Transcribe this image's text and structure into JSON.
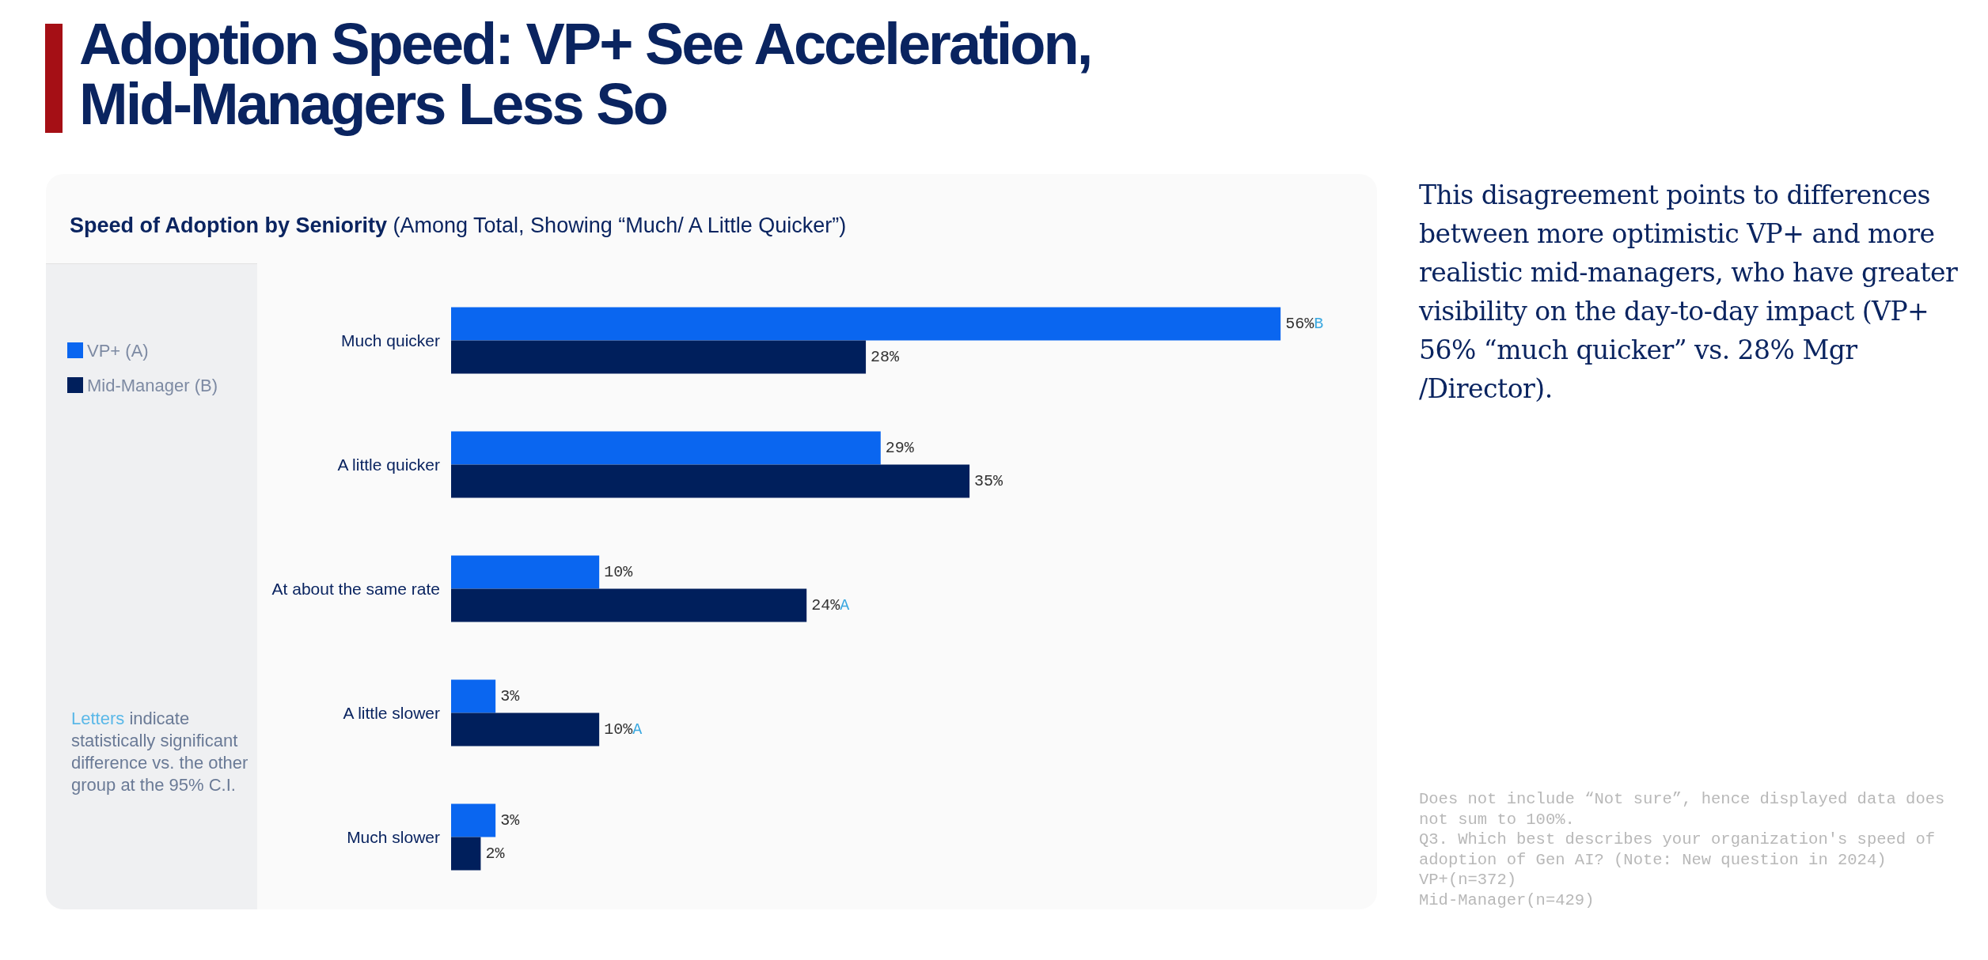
{
  "chart_data": {
    "type": "bar",
    "orientation": "horizontal",
    "title": "Adoption Speed: VP+ See Acceleration, Mid-Managers Less So",
    "subtitle": "Speed of Adoption by Seniority (Among Total, Showing “Much/ A Little Quicker”)",
    "categories": [
      "Much quicker",
      "A little quicker",
      "At about the same rate",
      "A little slower",
      "Much slower"
    ],
    "series": [
      {
        "name": "VP+ (A)",
        "color": "#0a66f0",
        "values": [
          56,
          29,
          10,
          3,
          3
        ],
        "value_labels": [
          "56%B",
          "29%",
          "10%",
          "3%",
          "3%"
        ]
      },
      {
        "name": "Mid-Manager (B)",
        "color": "#001f5c",
        "values": [
          28,
          35,
          24,
          10,
          2
        ],
        "value_labels": [
          "28%",
          "35%",
          "24%A",
          "10%A",
          "2%"
        ]
      }
    ],
    "legend": "left",
    "grid": false,
    "tick_labels": "y",
    "annotations": [
      "This disagreement points to differences between more optimistic VP+ and more realistic mid-managers, who have greater visibility on the day-to-day impact (VP+ 56% “much quicker” vs. 28% Mgr /Director).",
      "Letters indicate statistically significant difference vs. the other group at the 95% C.I.",
      "Does not include “Not sure”, hence displayed data does not sum to 100%.",
      "Q3. Which best describes your organization's speed of adoption of Gen AI? (Note: New question in 2024)",
      "VP+(n=372)",
      "Mid-Manager(n=429)"
    ]
  }
}
